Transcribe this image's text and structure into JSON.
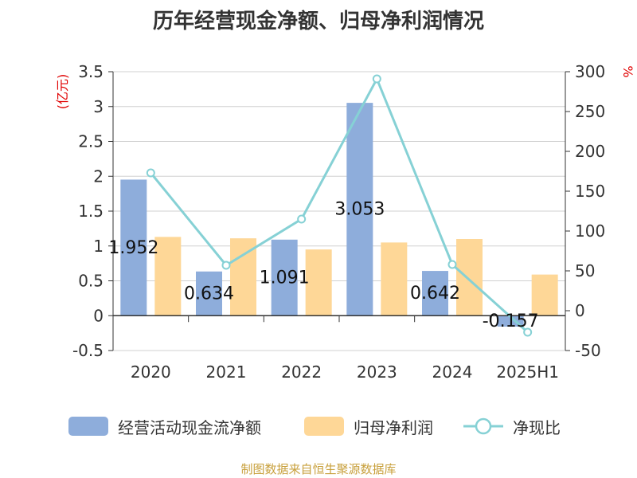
{
  "chart_data": {
    "type": "bar",
    "title": "历年经营现金净额、归母净利润情况",
    "categories": [
      "2020",
      "2021",
      "2022",
      "2023",
      "2024",
      "2025H1"
    ],
    "y_left": {
      "unit": "(亿元)",
      "ylim": [
        -0.5,
        3.5
      ],
      "ticks": [
        "-0.5",
        "0",
        "0.5",
        "1",
        "1.5",
        "2",
        "2.5",
        "3",
        "3.5"
      ]
    },
    "y_right": {
      "unit": "%",
      "ylim": [
        -50,
        300
      ],
      "ticks": [
        "-50",
        "0",
        "50",
        "100",
        "150",
        "200",
        "250",
        "300"
      ]
    },
    "series": [
      {
        "name": "经营活动现金流净额",
        "kind": "bar",
        "axis": "left",
        "color": "#8eaddb",
        "values": [
          1.952,
          0.634,
          1.091,
          3.053,
          0.642,
          -0.157
        ],
        "labels": [
          "1.952",
          "0.634",
          "1.091",
          "3.053",
          "0.642",
          "-0.157"
        ]
      },
      {
        "name": "归母净利润",
        "kind": "bar",
        "axis": "left",
        "color": "#fed797",
        "values": [
          1.13,
          1.11,
          0.95,
          1.05,
          1.1,
          0.59
        ]
      },
      {
        "name": "净现比",
        "kind": "line",
        "axis": "right",
        "color": "#86d1d5",
        "values": [
          173,
          57,
          115,
          291,
          58,
          -27
        ]
      }
    ],
    "grid": true,
    "legend_position": "bottom"
  },
  "source_note": "制图数据来自恒生聚源数据库"
}
